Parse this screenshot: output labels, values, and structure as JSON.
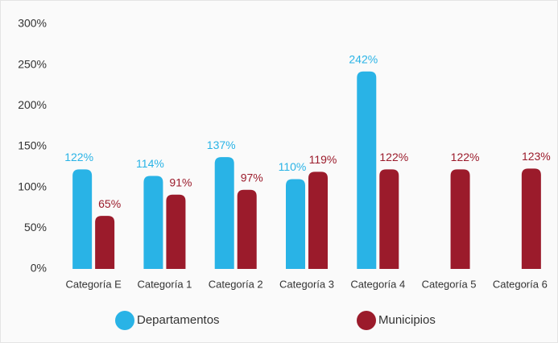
{
  "chart_data": {
    "type": "bar",
    "categories": [
      "Categoría E",
      "Categoría 1",
      "Categoría 2",
      "Categoría 3",
      "Categoría 4",
      "Categoría 5",
      "Categoría 6"
    ],
    "series": [
      {
        "name": "Departamentos",
        "color": "#29b3e6",
        "values": [
          122,
          114,
          137,
          110,
          242,
          null,
          null
        ],
        "value_labels": [
          "122%",
          "114%",
          "137%",
          "110%",
          "242%",
          null,
          null
        ]
      },
      {
        "name": "Municipios",
        "color": "#9b1b2b",
        "values": [
          65,
          91,
          97,
          119,
          122,
          122,
          123
        ],
        "value_labels": [
          "65%",
          "91%",
          "97%",
          "119%",
          "122%",
          "122%",
          "123%"
        ]
      }
    ],
    "ylim": [
      0,
      300
    ],
    "yticks": [
      {
        "value": 0,
        "label": "0%"
      },
      {
        "value": 50,
        "label": "50%"
      },
      {
        "value": 100,
        "label": "100%"
      },
      {
        "value": 150,
        "label": "150%"
      },
      {
        "value": 200,
        "label": "200%"
      },
      {
        "value": 250,
        "label": "250%"
      },
      {
        "value": 300,
        "label": "300%"
      }
    ],
    "grid": false,
    "legend": "bottom"
  }
}
